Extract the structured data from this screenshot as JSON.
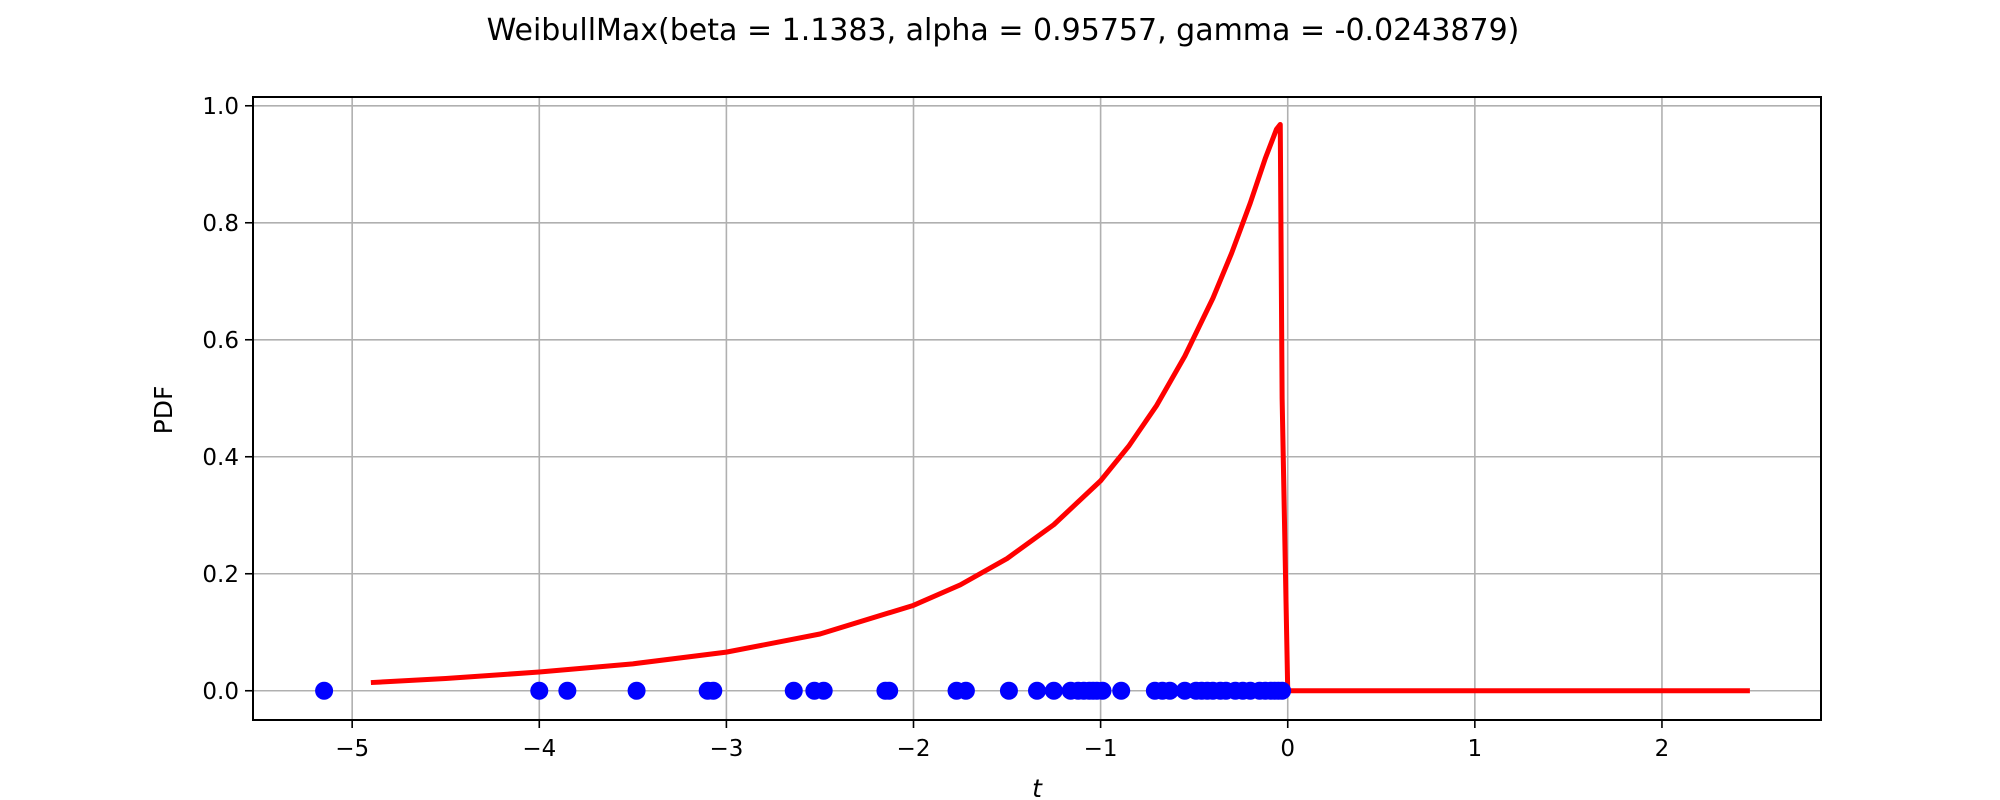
{
  "chart_data": {
    "type": "line",
    "title": "WeibullMax(beta = 1.1383, alpha = 0.95757, gamma = -0.0243879)",
    "xlabel": "t",
    "ylabel": "PDF",
    "xlim": [
      -5.53,
      2.85
    ],
    "ylim": [
      -0.05,
      1.015
    ],
    "x_ticks": [
      -5,
      -4,
      -3,
      -2,
      -1,
      0,
      1,
      2
    ],
    "x_tick_labels": [
      "−5",
      "−4",
      "−3",
      "−2",
      "−1",
      "0",
      "1",
      "2"
    ],
    "y_ticks": [
      0.0,
      0.2,
      0.4,
      0.6,
      0.8,
      1.0
    ],
    "y_tick_labels": [
      "0.0",
      "0.2",
      "0.4",
      "0.6",
      "0.8",
      "1.0"
    ],
    "grid": true,
    "series": [
      {
        "kind": "line",
        "color": "#ff0000",
        "x": [
          -4.9,
          -4.5,
          -4.0,
          -3.5,
          -3.0,
          -2.5,
          -2.0,
          -1.75,
          -1.5,
          -1.25,
          -1.0,
          -0.85,
          -0.7,
          -0.55,
          -0.4,
          -0.3,
          -0.2,
          -0.12,
          -0.06,
          -0.04,
          -0.03,
          0.0,
          0.5,
          1.0,
          1.5,
          2.0,
          2.47
        ],
        "y": [
          0.014,
          0.021,
          0.032,
          0.046,
          0.066,
          0.097,
          0.146,
          0.181,
          0.226,
          0.284,
          0.359,
          0.418,
          0.488,
          0.572,
          0.671,
          0.748,
          0.834,
          0.91,
          0.96,
          0.968,
          0.5,
          0.0,
          0.0,
          0.0,
          0.0,
          0.0,
          0.0
        ]
      },
      {
        "kind": "scatter",
        "color": "#0000ff",
        "x": [
          -5.15,
          -4.0,
          -3.85,
          -3.48,
          -3.1,
          -3.07,
          -2.64,
          -2.53,
          -2.48,
          -2.15,
          -2.13,
          -1.77,
          -1.72,
          -1.49,
          -1.34,
          -1.25,
          -1.16,
          -1.12,
          -1.09,
          -1.06,
          -1.04,
          -1.02,
          -0.99,
          -0.89,
          -0.71,
          -0.67,
          -0.63,
          -0.55,
          -0.49,
          -0.46,
          -0.43,
          -0.4,
          -0.36,
          -0.33,
          -0.28,
          -0.24,
          -0.2,
          -0.15,
          -0.12,
          -0.09,
          -0.07,
          -0.05,
          -0.03
        ],
        "y": [
          0,
          0,
          0,
          0,
          0,
          0,
          0,
          0,
          0,
          0,
          0,
          0,
          0,
          0,
          0,
          0,
          0,
          0,
          0,
          0,
          0,
          0,
          0,
          0,
          0,
          0,
          0,
          0,
          0,
          0,
          0,
          0,
          0,
          0,
          0,
          0,
          0,
          0,
          0,
          0,
          0,
          0,
          0
        ]
      }
    ]
  }
}
